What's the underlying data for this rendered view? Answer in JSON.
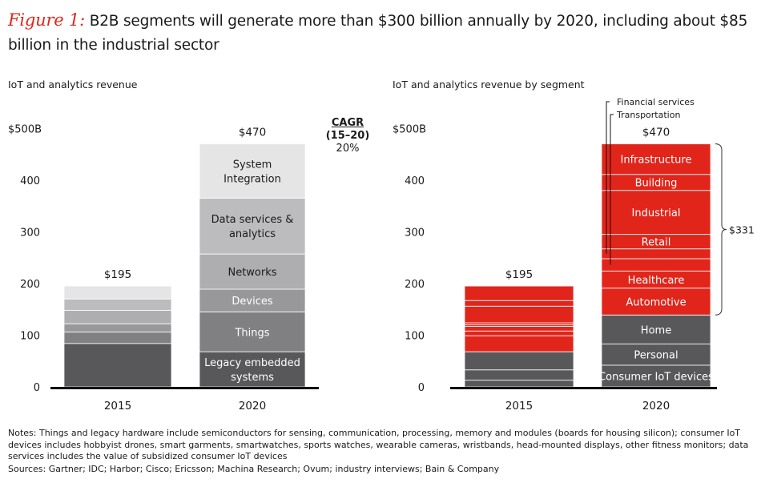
{
  "title": {
    "figure_label": "Figure 1:",
    "text": "B2B segments will generate more than $300 billion annually by 2020, including about $85 billion in the industrial sector"
  },
  "chart_data": [
    {
      "type": "bar",
      "stacked": true,
      "subtitle": "IoT and analytics revenue",
      "categories": [
        "2015",
        "2020"
      ],
      "y_ticks": [
        "0",
        "100",
        "200",
        "300",
        "400",
        "$500B"
      ],
      "ylim": [
        0,
        500
      ],
      "totals": [
        "$195",
        "$470"
      ],
      "series": [
        {
          "name": "Legacy embedded systems",
          "values": [
            84,
            68
          ],
          "color": "#58585a",
          "text_color": "#ffffff"
        },
        {
          "name": "Things",
          "values": [
            22,
            77
          ],
          "color": "#808083",
          "text_color": "#ffffff"
        },
        {
          "name": "Devices",
          "values": [
            16,
            44
          ],
          "color": "#98989b",
          "text_color": "#ffffff"
        },
        {
          "name": "Networks",
          "values": [
            26,
            68
          ],
          "color": "#aeaeb1",
          "text_color": "#1a1a1a"
        },
        {
          "name": "Data services & analytics",
          "values": [
            22,
            108
          ],
          "color": "#bcbcbf",
          "text_color": "#1a1a1a"
        },
        {
          "name": "System Integration",
          "values": [
            25,
            105
          ],
          "color": "#e5e5e6",
          "text_color": "#1a1a1a"
        }
      ],
      "cagr": {
        "label": "CAGR",
        "period": "(15–20)",
        "value": "20%"
      }
    },
    {
      "type": "bar",
      "stacked": true,
      "subtitle": "IoT and analytics revenue by segment",
      "categories": [
        "2015",
        "2020"
      ],
      "y_ticks": [
        "0",
        "100",
        "200",
        "300",
        "400",
        "$500B"
      ],
      "ylim": [
        0,
        500
      ],
      "totals": [
        "$195",
        "$470"
      ],
      "series": [
        {
          "name": "Consumer IoT devices",
          "values": [
            13,
            42
          ],
          "color": "#58585a",
          "text_color": "#ffffff"
        },
        {
          "name": "Personal",
          "values": [
            20,
            41
          ],
          "color": "#58585a",
          "text_color": "#ffffff"
        },
        {
          "name": "Home",
          "values": [
            35,
            56
          ],
          "color": "#58585a",
          "text_color": "#ffffff"
        },
        {
          "name": "Automotive",
          "values": [
            31,
            52
          ],
          "color": "#e1251b",
          "text_color": "#ffffff"
        },
        {
          "name": "Healthcare",
          "values": [
            9,
            33
          ],
          "color": "#e1251b",
          "text_color": "#ffffff"
        },
        {
          "name": "Transportation",
          "values": [
            9,
            24
          ],
          "color": "#e1251b",
          "text_color": "#ffffff",
          "callout": true
        },
        {
          "name": "Financial services",
          "values": [
            3,
            19
          ],
          "color": "#e1251b",
          "text_color": "#ffffff",
          "callout": true
        },
        {
          "name": "Retail",
          "values": [
            4,
            28
          ],
          "color": "#e1251b",
          "text_color": "#ffffff"
        },
        {
          "name": "Industrial",
          "values": [
            32,
            85
          ],
          "color": "#e1251b",
          "text_color": "#ffffff"
        },
        {
          "name": "Building",
          "values": [
            11,
            31
          ],
          "color": "#e1251b",
          "text_color": "#ffffff"
        },
        {
          "name": "Infrastructure",
          "values": [
            28,
            59
          ],
          "color": "#e1251b",
          "text_color": "#ffffff"
        }
      ],
      "bracket": {
        "label": "$331"
      }
    }
  ],
  "notes": "Notes: Things and legacy hardware include semiconductors for sensing, communication, processing, memory and modules (boards for housing silicon); consumer IoT devices includes hobbyist drones, smart garments, smartwatches, sports watches, wearable cameras, wristbands, head-mounted displays, other fitness monitors; data services includes the value of subsidized consumer IoT devices",
  "sources": "Sources: Gartner; IDC; Harbor; Cisco; Ericsson; Machina Research; Ovum; industry interviews; Bain & Company"
}
